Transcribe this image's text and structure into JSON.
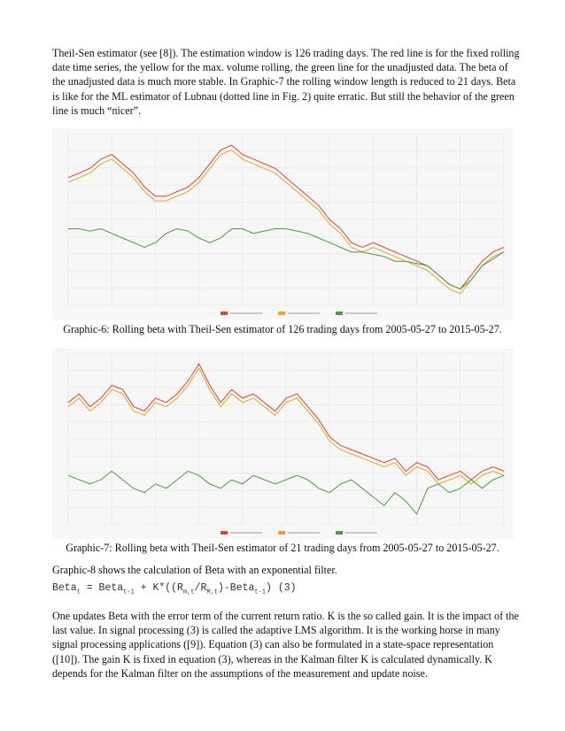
{
  "paragraphs": {
    "intro": "Theil-Sen estimator (see [8]). The estimation window is 126 trading days.  The red line is for the fixed rolling date time series, the yellow for the max. volume rolling, the green line for the unadjusted data. The beta of the unadjusted data is much more stable. In Graphic-7 the rolling window length is reduced to 21 days. Beta is like for the ML estimator of Lubnau (dotted line in Fig. 2) quite erratic. But still the behavior of the green line is much “nicer”.",
    "graphic8": "Graphic-8 shows the calculation of Beta with an exponential filter.",
    "explanation": "One updates Beta with the error term of the current return ratio. K is the so called gain. It is the impact of the last value. In signal processing (3) is called the adaptive LMS algorithm. It is the working horse in many signal processing applications ([9]). Equation (3) can also be formulated in a state-space representation ([10]). The gain K is fixed in equation (3), whereas in the Kalman filter K is calculated dynamically. K depends for the Kalman filter on the assumptions of the measurement and update noise."
  },
  "formula": {
    "lhs": "Beta",
    "lhs_sub": "t",
    "mid1": " = Beta",
    "mid1_sub": "t-1",
    "mid2": " + K*((R",
    "r1_sub": "m,t",
    "mid3": "/R",
    "r2_sub": "M,t",
    "mid4": ")-Beta",
    "b_sub": "t-1",
    "tail": ") (3)"
  },
  "captions": {
    "graphic6": "Graphic-6: Rolling beta with Theil-Sen estimator of 126 trading days from 2005-05-27 to 2015-05-27.",
    "graphic7": "Graphic-7: Rolling beta with Theil-Sen estimator of 21 trading days from 2005-05-27 to 2015-05-27."
  },
  "chart_data": [
    {
      "type": "line",
      "x_range": [
        "2005-05-27",
        "2015-05-27"
      ],
      "series": [
        {
          "color": "#d9472b",
          "values": [
            0.78,
            0.8,
            0.82,
            0.86,
            0.88,
            0.84,
            0.8,
            0.74,
            0.7,
            0.7,
            0.72,
            0.74,
            0.78,
            0.84,
            0.9,
            0.92,
            0.88,
            0.86,
            0.84,
            0.82,
            0.78,
            0.74,
            0.7,
            0.66,
            0.6,
            0.56,
            0.5,
            0.48,
            0.5,
            0.48,
            0.46,
            0.44,
            0.42,
            0.4,
            0.36,
            0.32,
            0.3,
            0.36,
            0.42,
            0.46,
            0.48
          ]
        },
        {
          "color": "#f0a020",
          "values": [
            0.76,
            0.78,
            0.8,
            0.84,
            0.86,
            0.82,
            0.78,
            0.72,
            0.68,
            0.68,
            0.7,
            0.72,
            0.76,
            0.82,
            0.88,
            0.9,
            0.86,
            0.84,
            0.82,
            0.8,
            0.76,
            0.72,
            0.68,
            0.64,
            0.58,
            0.54,
            0.48,
            0.46,
            0.48,
            0.46,
            0.44,
            0.42,
            0.4,
            0.38,
            0.34,
            0.3,
            0.28,
            0.34,
            0.4,
            0.44,
            0.46
          ]
        },
        {
          "color": "#4a9e3a",
          "values": [
            0.56,
            0.56,
            0.55,
            0.56,
            0.54,
            0.52,
            0.5,
            0.48,
            0.5,
            0.54,
            0.56,
            0.55,
            0.52,
            0.5,
            0.52,
            0.56,
            0.56,
            0.54,
            0.55,
            0.56,
            0.56,
            0.55,
            0.54,
            0.52,
            0.5,
            0.48,
            0.46,
            0.46,
            0.45,
            0.44,
            0.42,
            0.42,
            0.41,
            0.4,
            0.36,
            0.32,
            0.3,
            0.34,
            0.4,
            0.43,
            0.46
          ]
        }
      ]
    },
    {
      "type": "line",
      "x_range": [
        "2005-05-27",
        "2015-05-27"
      ],
      "series": [
        {
          "color": "#d9472b",
          "values": [
            0.82,
            0.86,
            0.8,
            0.84,
            0.9,
            0.88,
            0.8,
            0.78,
            0.84,
            0.82,
            0.86,
            0.92,
            1.0,
            0.9,
            0.82,
            0.88,
            0.84,
            0.86,
            0.82,
            0.78,
            0.84,
            0.86,
            0.8,
            0.74,
            0.66,
            0.62,
            0.6,
            0.58,
            0.56,
            0.54,
            0.56,
            0.5,
            0.54,
            0.52,
            0.46,
            0.48,
            0.5,
            0.46,
            0.5,
            0.52,
            0.5
          ]
        },
        {
          "color": "#f0a020",
          "values": [
            0.8,
            0.84,
            0.78,
            0.82,
            0.88,
            0.86,
            0.78,
            0.76,
            0.82,
            0.8,
            0.84,
            0.9,
            0.98,
            0.88,
            0.8,
            0.86,
            0.82,
            0.84,
            0.8,
            0.76,
            0.82,
            0.84,
            0.78,
            0.72,
            0.64,
            0.6,
            0.58,
            0.56,
            0.54,
            0.52,
            0.54,
            0.48,
            0.52,
            0.5,
            0.44,
            0.46,
            0.48,
            0.44,
            0.48,
            0.5,
            0.48
          ]
        },
        {
          "color": "#4a9e3a",
          "values": [
            0.48,
            0.46,
            0.44,
            0.46,
            0.5,
            0.46,
            0.42,
            0.4,
            0.44,
            0.42,
            0.46,
            0.5,
            0.48,
            0.44,
            0.42,
            0.46,
            0.44,
            0.48,
            0.46,
            0.44,
            0.46,
            0.48,
            0.46,
            0.42,
            0.4,
            0.44,
            0.46,
            0.42,
            0.38,
            0.34,
            0.4,
            0.36,
            0.3,
            0.42,
            0.44,
            0.4,
            0.42,
            0.46,
            0.42,
            0.46,
            0.48
          ]
        }
      ]
    }
  ]
}
